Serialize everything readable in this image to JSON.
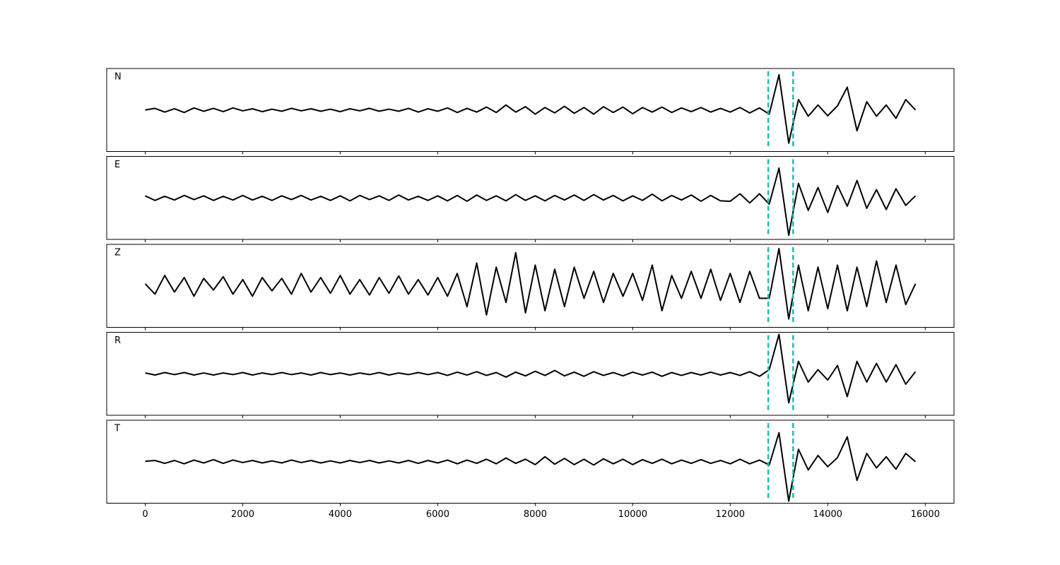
{
  "chart_data": {
    "type": "line",
    "x": [
      0,
      200,
      400,
      600,
      800,
      1000,
      1200,
      1400,
      1600,
      1800,
      2000,
      2200,
      2400,
      2600,
      2800,
      3000,
      3200,
      3400,
      3600,
      3800,
      4000,
      4200,
      4400,
      4600,
      4800,
      5000,
      5200,
      5400,
      5600,
      5800,
      6000,
      6200,
      6400,
      6600,
      6800,
      7000,
      7200,
      7400,
      7600,
      7800,
      8000,
      8200,
      8400,
      8600,
      8800,
      9000,
      9200,
      9400,
      9600,
      9800,
      10000,
      10200,
      10400,
      10600,
      10800,
      11000,
      11200,
      11400,
      11600,
      11800,
      12000,
      12200,
      12400,
      12600,
      12800,
      13000,
      13200,
      13400,
      13600,
      13800,
      14000,
      14200,
      14400,
      14600,
      14800,
      15000,
      15200,
      15400,
      15600,
      15800
    ],
    "series": [
      {
        "name": "N",
        "color": "#000000",
        "values": [
          0,
          0.04,
          -0.05,
          0.03,
          -0.06,
          0.05,
          -0.03,
          0.04,
          -0.04,
          0.05,
          -0.02,
          0.03,
          -0.04,
          0.02,
          -0.03,
          0.04,
          -0.02,
          0.03,
          -0.03,
          0.02,
          -0.04,
          0.03,
          -0.02,
          0.04,
          -0.03,
          0.02,
          -0.03,
          0.04,
          -0.05,
          0.03,
          -0.03,
          0.05,
          -0.06,
          0.04,
          -0.05,
          0.07,
          -0.06,
          0.12,
          -0.05,
          0.08,
          -0.1,
          0.06,
          -0.07,
          0.09,
          -0.08,
          0.06,
          -0.1,
          0.08,
          -0.06,
          0.07,
          -0.09,
          0.06,
          -0.05,
          0.07,
          -0.06,
          0.05,
          -0.04,
          0.06,
          -0.05,
          0.04,
          -0.05,
          0.06,
          -0.07,
          0.05,
          -0.1,
          0.85,
          -0.8,
          0.25,
          -0.15,
          0.12,
          -0.14,
          0.1,
          0.55,
          -0.5,
          0.2,
          -0.15,
          0.12,
          -0.2,
          0.25,
          0
        ]
      },
      {
        "name": "E",
        "color": "#000000",
        "values": [
          0.05,
          -0.06,
          0.04,
          -0.05,
          0.06,
          -0.04,
          0.05,
          -0.06,
          0.04,
          -0.05,
          0.06,
          -0.05,
          0.04,
          -0.06,
          0.05,
          -0.04,
          0.06,
          -0.05,
          0.04,
          -0.06,
          0.05,
          -0.07,
          0.06,
          -0.04,
          0.05,
          -0.06,
          0.07,
          -0.05,
          0.04,
          -0.06,
          0.05,
          -0.07,
          0.06,
          -0.08,
          0.07,
          -0.06,
          0.05,
          -0.07,
          0.08,
          -0.06,
          0.05,
          -0.07,
          0.06,
          -0.05,
          0.07,
          -0.06,
          0.08,
          -0.05,
          0.06,
          -0.07,
          0.05,
          -0.06,
          0.09,
          -0.07,
          0.06,
          -0.05,
          0.07,
          -0.08,
          0.06,
          -0.07,
          -0.08,
          0.1,
          -0.12,
          0.1,
          -0.15,
          0.72,
          -0.9,
          0.35,
          -0.3,
          0.25,
          -0.35,
          0.3,
          -0.2,
          0.42,
          -0.25,
          0.2,
          -0.28,
          0.22,
          -0.18,
          0.05
        ]
      },
      {
        "name": "Z",
        "color": "#000000",
        "values": [
          0.05,
          -0.2,
          0.25,
          -0.15,
          0.2,
          -0.25,
          0.18,
          -0.1,
          0.22,
          -0.2,
          0.15,
          -0.25,
          0.2,
          -0.12,
          0.18,
          -0.2,
          0.3,
          -0.15,
          0.2,
          -0.18,
          0.25,
          -0.2,
          0.15,
          -0.22,
          0.2,
          -0.18,
          0.24,
          -0.2,
          0.15,
          -0.22,
          0.2,
          -0.25,
          0.3,
          -0.5,
          0.55,
          -0.7,
          0.45,
          -0.4,
          0.8,
          -0.65,
          0.5,
          -0.6,
          0.4,
          -0.5,
          0.45,
          -0.3,
          0.35,
          -0.4,
          0.3,
          -0.25,
          0.3,
          -0.35,
          0.5,
          -0.6,
          0.25,
          -0.3,
          0.35,
          -0.3,
          0.4,
          -0.35,
          0.3,
          -0.4,
          0.35,
          -0.3,
          -0.3,
          0.9,
          -0.8,
          0.5,
          -0.6,
          0.45,
          -0.55,
          0.5,
          -0.6,
          0.45,
          -0.5,
          0.6,
          -0.4,
          0.5,
          -0.45,
          0.05
        ]
      },
      {
        "name": "R",
        "color": "#000000",
        "values": [
          0.02,
          -0.03,
          0.03,
          -0.02,
          0.03,
          -0.03,
          0.02,
          -0.03,
          0.02,
          -0.02,
          0.03,
          -0.03,
          0.02,
          -0.02,
          0.03,
          -0.02,
          0.02,
          -0.03,
          0.03,
          -0.02,
          0.02,
          -0.03,
          0.02,
          -0.02,
          0.03,
          -0.03,
          0.02,
          -0.02,
          0.03,
          -0.02,
          0.03,
          -0.04,
          0.04,
          -0.03,
          0.05,
          -0.04,
          0.03,
          -0.08,
          0.04,
          -0.05,
          0.06,
          -0.04,
          0.08,
          -0.05,
          0.04,
          -0.06,
          0.05,
          -0.04,
          0.03,
          -0.05,
          0.04,
          -0.03,
          0.04,
          -0.06,
          0.03,
          -0.04,
          0.03,
          -0.03,
          0.04,
          -0.03,
          0.03,
          -0.04,
          0.05,
          -0.06,
          0.1,
          0.95,
          -0.7,
          0.3,
          -0.2,
          0.1,
          -0.15,
          0.2,
          -0.55,
          0.3,
          -0.2,
          0.25,
          -0.2,
          0.22,
          -0.25,
          0.05
        ]
      },
      {
        "name": "T",
        "color": "#000000",
        "values": [
          0.01,
          0.03,
          -0.04,
          0.03,
          -0.05,
          0.04,
          -0.03,
          0.05,
          -0.04,
          0.04,
          -0.02,
          0.03,
          -0.03,
          0.02,
          -0.03,
          0.04,
          -0.02,
          0.03,
          -0.03,
          0.02,
          -0.03,
          0.03,
          -0.02,
          0.03,
          -0.03,
          0.02,
          -0.03,
          0.03,
          -0.04,
          0.03,
          -0.03,
          0.04,
          -0.05,
          0.04,
          -0.04,
          0.06,
          -0.05,
          0.09,
          -0.04,
          0.06,
          -0.07,
          0.12,
          -0.06,
          0.08,
          -0.07,
          0.06,
          -0.08,
          0.07,
          -0.05,
          0.06,
          -0.07,
          0.05,
          -0.04,
          0.06,
          -0.05,
          0.04,
          -0.04,
          0.05,
          -0.04,
          0.03,
          -0.05,
          0.06,
          -0.05,
          0.04,
          -0.08,
          0.7,
          -0.95,
          0.3,
          -0.2,
          0.15,
          -0.12,
          0.1,
          0.6,
          -0.45,
          0.2,
          -0.15,
          0.12,
          -0.18,
          0.2,
          0
        ]
      }
    ],
    "xlim": [
      -790,
      16590
    ],
    "xticks": [
      0,
      2000,
      4000,
      6000,
      8000,
      10000,
      12000,
      14000,
      16000
    ],
    "ylim": [
      -1,
      1
    ],
    "markers": [
      12780,
      13290
    ],
    "marker_color": "#17bfb5"
  }
}
